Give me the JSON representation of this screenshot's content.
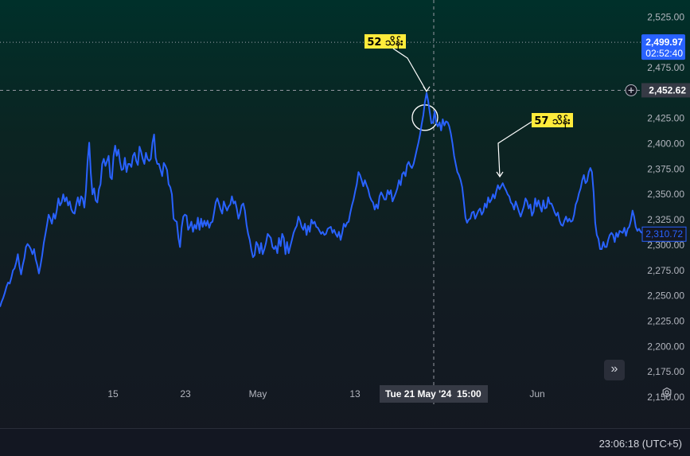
{
  "chart_data": {
    "type": "line",
    "title": "",
    "xlabel": "",
    "ylabel": "",
    "ylim": [
      2138,
      2538
    ],
    "y_ticks": [
      2150,
      2175,
      2200,
      2225,
      2250,
      2275,
      2300,
      2325,
      2350,
      2375,
      2400,
      2425,
      2450,
      2475,
      2500,
      2525
    ],
    "y_tick_labels": [
      "2,150.00",
      "2,175.00",
      "2,200.00",
      "2,225.00",
      "2,250.00",
      "2,275.00",
      "2,300.00",
      "2,325.00",
      "2,350.00",
      "2,375.00",
      "2,400.00",
      "2,425.00",
      "2,450.00",
      "2,475.00",
      "2,500.00",
      "2,525.00"
    ],
    "x_tick_labels": [
      "15",
      "23",
      "May",
      "13",
      "Jun"
    ],
    "series": [
      {
        "color": "#2962ff",
        "values": [
          2239,
          2244,
          2248,
          2253,
          2259,
          2263,
          2262,
          2268,
          2275,
          2277,
          2283,
          2291,
          2279,
          2271,
          2280,
          2287,
          2298,
          2301,
          2299,
          2296,
          2291,
          2296,
          2286,
          2280,
          2272,
          2280,
          2290,
          2302,
          2311,
          2320,
          2330,
          2326,
          2321,
          2331,
          2326,
          2334,
          2346,
          2339,
          2342,
          2350,
          2343,
          2347,
          2339,
          2343,
          2335,
          2332,
          2331,
          2340,
          2347,
          2339,
          2348,
          2346,
          2337,
          2354,
          2382,
          2401,
          2371,
          2350,
          2356,
          2344,
          2342,
          2355,
          2360,
          2380,
          2385,
          2378,
          2383,
          2388,
          2367,
          2365,
          2388,
          2398,
          2388,
          2394,
          2382,
          2374,
          2375,
          2386,
          2372,
          2380,
          2380,
          2377,
          2388,
          2391,
          2383,
          2379,
          2397,
          2392,
          2385,
          2380,
          2391,
          2385,
          2383,
          2385,
          2401,
          2409,
          2386,
          2380,
          2380,
          2374,
          2368,
          2381,
          2378,
          2374,
          2360,
          2357,
          2350,
          2326,
          2324,
          2323,
          2307,
          2298,
          2317,
          2328,
          2330,
          2329,
          2315,
          2318,
          2323,
          2313,
          2320,
          2316,
          2327,
          2315,
          2326,
          2318,
          2324,
          2319,
          2324,
          2317,
          2322,
          2323,
          2332,
          2342,
          2346,
          2341,
          2335,
          2331,
          2343,
          2338,
          2334,
          2338,
          2340,
          2348,
          2341,
          2343,
          2336,
          2326,
          2331,
          2339,
          2341,
          2334,
          2320,
          2311,
          2305,
          2295,
          2288,
          2290,
          2303,
          2300,
          2292,
          2302,
          2291,
          2296,
          2302,
          2311,
          2309,
          2307,
          2298,
          2296,
          2299,
          2292,
          2307,
          2299,
          2311,
          2307,
          2291,
          2303,
          2292,
          2299,
          2305,
          2312,
          2316,
          2319,
          2328,
          2324,
          2318,
          2315,
          2321,
          2310,
          2319,
          2313,
          2325,
          2321,
          2323,
          2318,
          2317,
          2314,
          2311,
          2313,
          2310,
          2311,
          2316,
          2317,
          2318,
          2312,
          2315,
          2311,
          2308,
          2313,
          2305,
          2312,
          2321,
          2318,
          2322,
          2323,
          2332,
          2339,
          2345,
          2353,
          2360,
          2372,
          2369,
          2364,
          2358,
          2364,
          2359,
          2355,
          2348,
          2344,
          2342,
          2335,
          2340,
          2336,
          2348,
          2352,
          2349,
          2345,
          2345,
          2354,
          2350,
          2354,
          2343,
          2347,
          2351,
          2356,
          2364,
          2359,
          2370,
          2372,
          2368,
          2379,
          2382,
          2378,
          2376,
          2380,
          2387,
          2394,
          2401,
          2409,
          2419,
          2428,
          2441,
          2450,
          2442,
          2431,
          2420,
          2421,
          2432,
          2420,
          2417,
          2421,
          2413,
          2424,
          2418,
          2422,
          2421,
          2417,
          2410,
          2400,
          2388,
          2380,
          2372,
          2369,
          2364,
          2357,
          2343,
          2327,
          2322,
          2325,
          2326,
          2332,
          2333,
          2326,
          2330,
          2334,
          2336,
          2330,
          2333,
          2341,
          2337,
          2347,
          2342,
          2345,
          2350,
          2346,
          2353,
          2359,
          2355,
          2358,
          2361,
          2357,
          2354,
          2350,
          2348,
          2342,
          2340,
          2335,
          2343,
          2338,
          2333,
          2328,
          2333,
          2338,
          2346,
          2343,
          2336,
          2340,
          2329,
          2333,
          2346,
          2338,
          2344,
          2338,
          2333,
          2344,
          2336,
          2337,
          2347,
          2341,
          2341,
          2337,
          2332,
          2329,
          2332,
          2324,
          2320,
          2319,
          2324,
          2328,
          2323,
          2326,
          2323,
          2324,
          2330,
          2340,
          2344,
          2351,
          2356,
          2364,
          2369,
          2361,
          2363,
          2372,
          2376,
          2372,
          2352,
          2322,
          2310,
          2306,
          2296,
          2296,
          2303,
          2298,
          2298,
          2305,
          2310,
          2312,
          2310,
          2303,
          2312,
          2308,
          2314,
          2313,
          2312,
          2317,
          2309,
          2316,
          2318,
          2324,
          2334,
          2328,
          2318,
          2314,
          2316,
          2313,
          2312
        ]
      }
    ],
    "current_price": "2,310.72",
    "crosshair": {
      "price": "2,452.62",
      "date": "Tue 21 May '24",
      "time": "15:00"
    },
    "alert": {
      "price": "2,499.97",
      "countdown": "02:52:40"
    },
    "annotations": [
      "52 သိန်း",
      "57 သိန်း"
    ],
    "colors": {
      "line": "#2962ff",
      "callout_bg": "#ffeb3b",
      "alert_bg": "#2962ff",
      "axis_text": "#b2b5be"
    }
  },
  "status": {
    "clock": "23:06:18 (UTC+5)"
  },
  "icons": {
    "scroll": "chevrons-right-icon",
    "settings": "settings-icon",
    "plus": "plus-circle-icon"
  }
}
